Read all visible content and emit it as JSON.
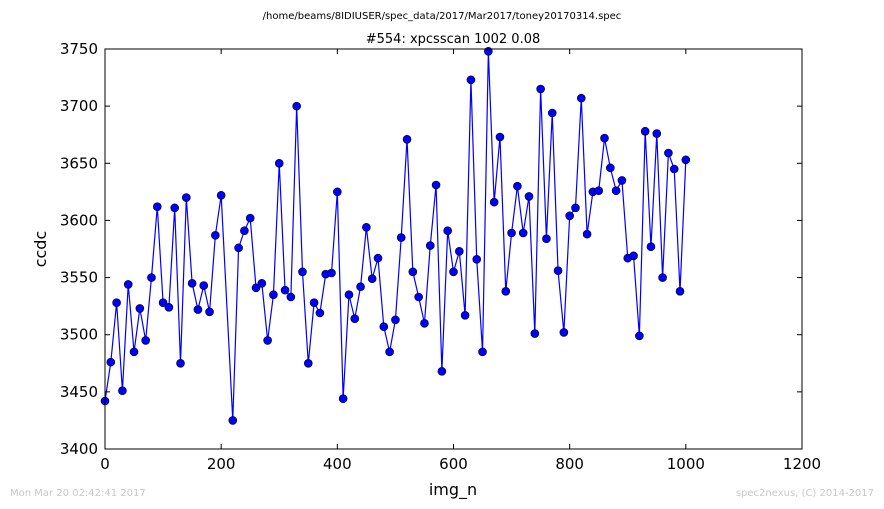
{
  "chart_data": {
    "type": "line",
    "suptitle": "/home/beams/8IDIUSER/spec_data/2017/Mar2017/toney20170314.spec",
    "title": "#554: xpcsscan 1002 0.08",
    "xlabel": "img_n",
    "ylabel": "ccdc",
    "xlim": [
      0,
      1200
    ],
    "ylim": [
      3400,
      3750
    ],
    "xticks": [
      0,
      200,
      400,
      600,
      800,
      1000,
      1200
    ],
    "yticks": [
      3400,
      3450,
      3500,
      3550,
      3600,
      3650,
      3700,
      3750
    ],
    "grid": false,
    "marker": "circle",
    "color": "#0000ff",
    "series": [
      {
        "x": [
          0,
          10,
          20,
          30,
          40,
          50,
          60,
          70,
          80,
          90,
          100,
          110,
          120,
          130,
          140,
          150,
          160,
          170,
          180,
          190,
          200,
          220,
          230,
          240,
          250,
          260,
          270,
          280,
          290,
          300,
          310,
          320,
          330,
          340,
          350,
          360,
          370,
          380,
          390,
          400,
          410,
          420,
          430,
          440,
          450,
          460,
          470,
          480,
          490,
          500,
          510,
          520,
          530,
          540,
          550,
          560,
          570,
          580,
          590,
          600,
          610,
          620,
          630,
          640,
          650,
          660,
          670,
          680,
          690,
          700,
          710,
          720,
          730,
          740,
          750,
          760,
          770,
          780,
          790,
          800,
          810,
          820,
          830,
          840,
          850,
          860,
          870,
          880,
          890,
          900,
          910,
          920,
          930,
          940,
          950,
          960,
          970,
          980,
          990,
          1000
        ],
        "y": [
          3442,
          3476,
          3528,
          3451,
          3544,
          3485,
          3523,
          3495,
          3550,
          3612,
          3528,
          3524,
          3611,
          3475,
          3620,
          3545,
          3522,
          3543,
          3520,
          3587,
          3622,
          3425,
          3576,
          3591,
          3602,
          3541,
          3545,
          3495,
          3535,
          3650,
          3539,
          3533,
          3700,
          3555,
          3475,
          3528,
          3519,
          3553,
          3554,
          3625,
          3444,
          3535,
          3514,
          3542,
          3594,
          3549,
          3567,
          3507,
          3485,
          3513,
          3585,
          3671,
          3555,
          3533,
          3510,
          3578,
          3631,
          3468,
          3591,
          3555,
          3573,
          3517,
          3723,
          3566,
          3485,
          3748,
          3616,
          3673,
          3538,
          3589,
          3630,
          3589,
          3621,
          3501,
          3715,
          3584,
          3694,
          3556,
          3502,
          3604,
          3611,
          3707,
          3588,
          3625,
          3626,
          3672,
          3646,
          3626,
          3635,
          3567,
          3569,
          3499,
          3678,
          3577,
          3676,
          3550,
          3659,
          3645,
          3538,
          3653
        ]
      }
    ]
  },
  "footer": {
    "timestamp": "Mon Mar 20 02:42:41 2017",
    "credit": "spec2nexus, (C) 2014-2017"
  }
}
